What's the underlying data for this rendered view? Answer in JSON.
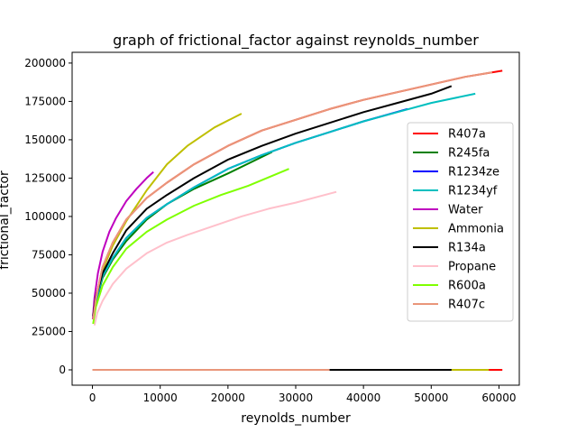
{
  "chart_data": {
    "type": "line",
    "title": "graph of frictional_factor against reynolds_number",
    "xlabel": "reynolds_number",
    "ylabel": "frictional_factor",
    "xlim": [
      -3000,
      63000
    ],
    "ylim": [
      -10000,
      207000
    ],
    "xticks": [
      0,
      10000,
      20000,
      30000,
      40000,
      50000,
      60000
    ],
    "xtick_labels": [
      "0",
      "10000",
      "20000",
      "30000",
      "40000",
      "50000",
      "60000"
    ],
    "yticks": [
      0,
      25000,
      50000,
      75000,
      100000,
      125000,
      150000,
      175000,
      200000
    ],
    "ytick_labels": [
      "0",
      "25000",
      "50000",
      "75000",
      "100000",
      "125000",
      "150000",
      "175000",
      "200000"
    ],
    "grid": false,
    "legend_position": "center-right",
    "series": [
      {
        "name": "R407a",
        "color": "#ff0000",
        "x": [
          0,
          58500,
          60500
        ],
        "y": [
          0,
          0,
          0
        ],
        "curve": {
          "x": [
            100,
            500,
            1500,
            3000,
            5000,
            8000,
            11000,
            15000,
            20000,
            25000,
            30000,
            35000,
            40000,
            45000,
            50000,
            55000,
            60500
          ],
          "y": [
            33000,
            46000,
            67000,
            83000,
            98000,
            112000,
            122000,
            134000,
            146000,
            156000,
            163000,
            170000,
            176000,
            181000,
            186000,
            191000,
            195000
          ]
        }
      },
      {
        "name": "R245fa",
        "color": "#008000",
        "curve": {
          "x": [
            100,
            500,
            1500,
            3000,
            5000,
            8000,
            11000,
            15000,
            20000,
            26500
          ],
          "y": [
            33000,
            44000,
            60000,
            72000,
            84000,
            98000,
            108000,
            118000,
            128000,
            142000
          ]
        }
      },
      {
        "name": "R1234ze",
        "color": "#0000ff",
        "curve": {
          "x": [
            100,
            500,
            1500,
            3000,
            5000,
            8000,
            11000,
            15000,
            20000,
            25000,
            30000,
            35000,
            40000,
            46500
          ],
          "y": [
            33000,
            45000,
            61000,
            73000,
            86000,
            99000,
            108000,
            119000,
            131000,
            140000,
            148000,
            155000,
            162000,
            170000
          ]
        }
      },
      {
        "name": "R1234yf",
        "color": "#00bfbf",
        "curve": {
          "x": [
            100,
            500,
            1500,
            3000,
            5000,
            8000,
            11000,
            15000,
            20000,
            25000,
            30000,
            35000,
            40000,
            45000,
            50000,
            56500
          ],
          "y": [
            33000,
            45000,
            61000,
            73000,
            86000,
            99000,
            108000,
            119000,
            131000,
            140000,
            148000,
            155000,
            162000,
            168000,
            174000,
            180000
          ]
        }
      },
      {
        "name": "Water",
        "color": "#bf00bf",
        "curve": {
          "x": [
            50,
            300,
            800,
            1500,
            2500,
            3500,
            5000,
            6500,
            8000,
            9000
          ],
          "y": [
            33000,
            47000,
            63000,
            77000,
            90000,
            99000,
            110000,
            118000,
            125000,
            129000
          ]
        }
      },
      {
        "name": "Ammonia",
        "color": "#bfbf00",
        "x": [
          0,
          58500
        ],
        "y": [
          0,
          0
        ],
        "curve": {
          "x": [
            100,
            500,
            1500,
            3000,
            5000,
            8000,
            11000,
            14000,
            18000,
            22000
          ],
          "y": [
            33000,
            47000,
            65000,
            81000,
            97000,
            117000,
            134000,
            146000,
            158000,
            167000
          ]
        }
      },
      {
        "name": "R134a",
        "color": "#000000",
        "x": [
          0,
          53000
        ],
        "y": [
          0,
          0
        ],
        "curve": {
          "x": [
            100,
            500,
            1500,
            3000,
            5000,
            8000,
            11000,
            15000,
            20000,
            25000,
            30000,
            35000,
            40000,
            45000,
            50000,
            53000
          ],
          "y": [
            35000,
            47000,
            63000,
            76000,
            91000,
            105000,
            114000,
            125000,
            137000,
            146000,
            154000,
            161000,
            168000,
            174000,
            180000,
            185000
          ]
        }
      },
      {
        "name": "Propane",
        "color": "#ffc0cb",
        "curve": {
          "x": [
            300,
            700,
            1500,
            3000,
            5000,
            8000,
            11000,
            14000,
            18000,
            22000,
            26000,
            30000,
            36000
          ],
          "y": [
            29000,
            37000,
            45000,
            56000,
            66000,
            76000,
            83000,
            88000,
            94000,
            100000,
            105000,
            109000,
            116000
          ]
        }
      },
      {
        "name": "R600a",
        "color": "#7fff00",
        "curve": {
          "x": [
            100,
            500,
            1500,
            3000,
            5000,
            8000,
            11000,
            15000,
            19000,
            23000,
            29000
          ],
          "y": [
            30000,
            41000,
            55000,
            67000,
            79000,
            90000,
            98000,
            107000,
            114000,
            120000,
            131000
          ]
        }
      },
      {
        "name": "R407c",
        "color": "#e9967a",
        "x": [
          0,
          35000
        ],
        "y": [
          0,
          0
        ],
        "curve": {
          "x": [
            100,
            500,
            1500,
            3000,
            5000,
            8000,
            11000,
            15000,
            20000,
            25000,
            30000,
            35000,
            40000,
            45000,
            50000,
            55000,
            59000
          ],
          "y": [
            33000,
            46000,
            67000,
            83000,
            98000,
            112000,
            122000,
            134000,
            146000,
            156000,
            163000,
            170000,
            176000,
            181000,
            186000,
            191000,
            194000
          ]
        }
      }
    ]
  }
}
